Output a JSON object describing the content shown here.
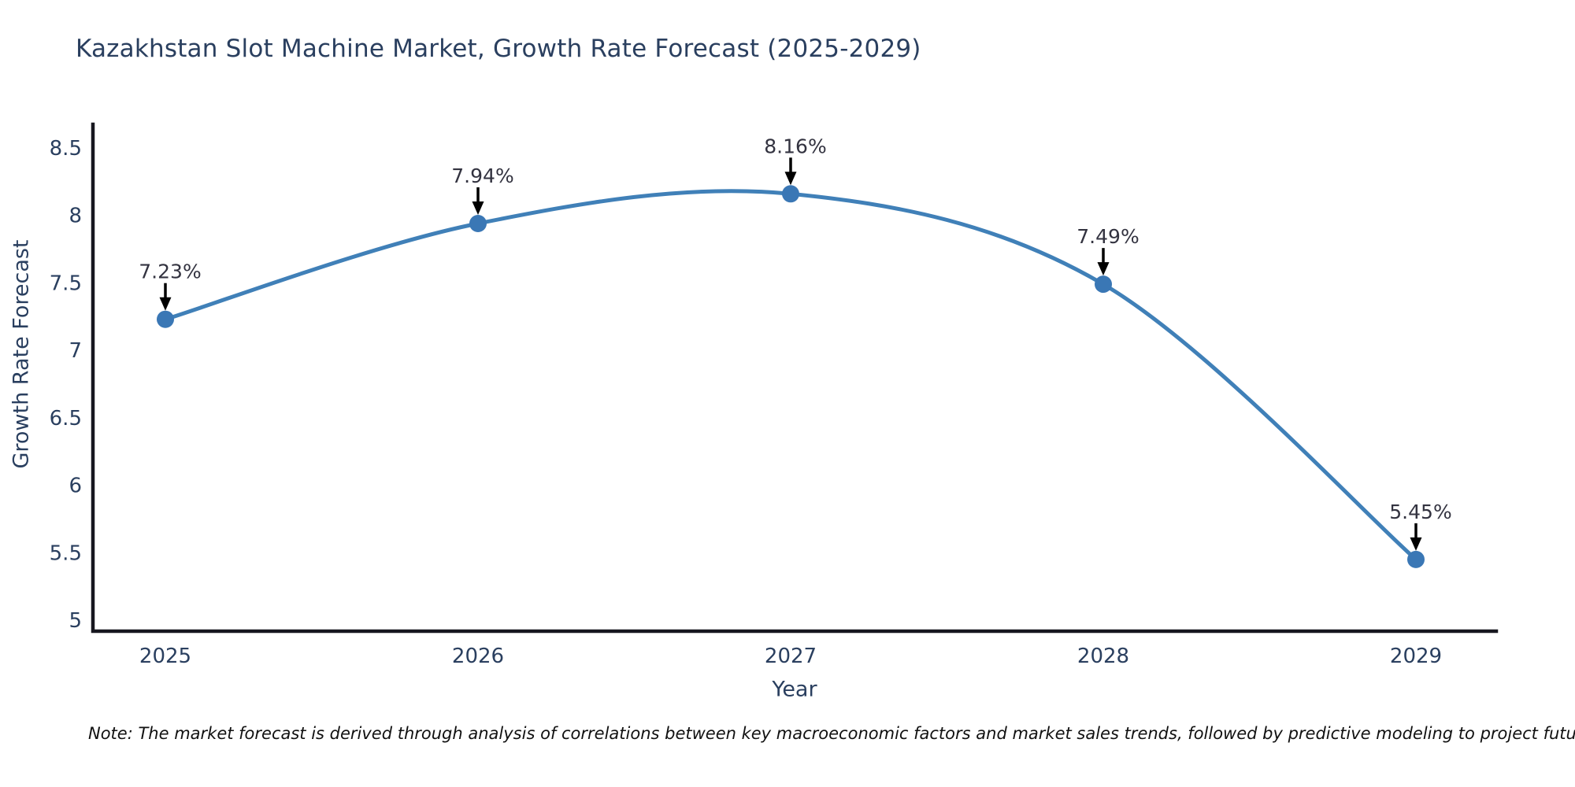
{
  "title": "Kazakhstan Slot Machine Market, Growth Rate Forecast (2025-2029)",
  "chart_data": {
    "type": "line",
    "x": [
      2025,
      2026,
      2027,
      2028,
      2029
    ],
    "series": [
      {
        "name": "Growth Rate Forecast",
        "values": [
          7.23,
          7.94,
          8.16,
          7.49,
          5.45
        ]
      }
    ],
    "point_labels": [
      "7.23%",
      "7.94%",
      "8.16%",
      "7.49%",
      "5.45%"
    ],
    "xlabel": "Year",
    "ylabel": "Growth Rate Forecast",
    "xlim": [
      2025,
      2029
    ],
    "ylim": [
      5,
      8.5
    ],
    "yticks": [
      5,
      5.5,
      6,
      6.5,
      7,
      7.5,
      8,
      8.5
    ],
    "xticks": [
      "2025",
      "2026",
      "2027",
      "2028",
      "2029"
    ],
    "grid": false,
    "legend": "none",
    "line_shape": "spline",
    "colors": {
      "line": "#4080b8",
      "marker": "#3a77b5",
      "axis": "#17171f",
      "tick_label": "#2a3f5f",
      "title": "#2a3f5f",
      "annotation_text": "#333340",
      "annotation_arrow": "#000000",
      "background": "#ffffff"
    }
  },
  "note": "Note: The market forecast is derived through analysis of correlations between key macroeconomic factors and market sales trends, followed by predictive modeling to project future sales."
}
